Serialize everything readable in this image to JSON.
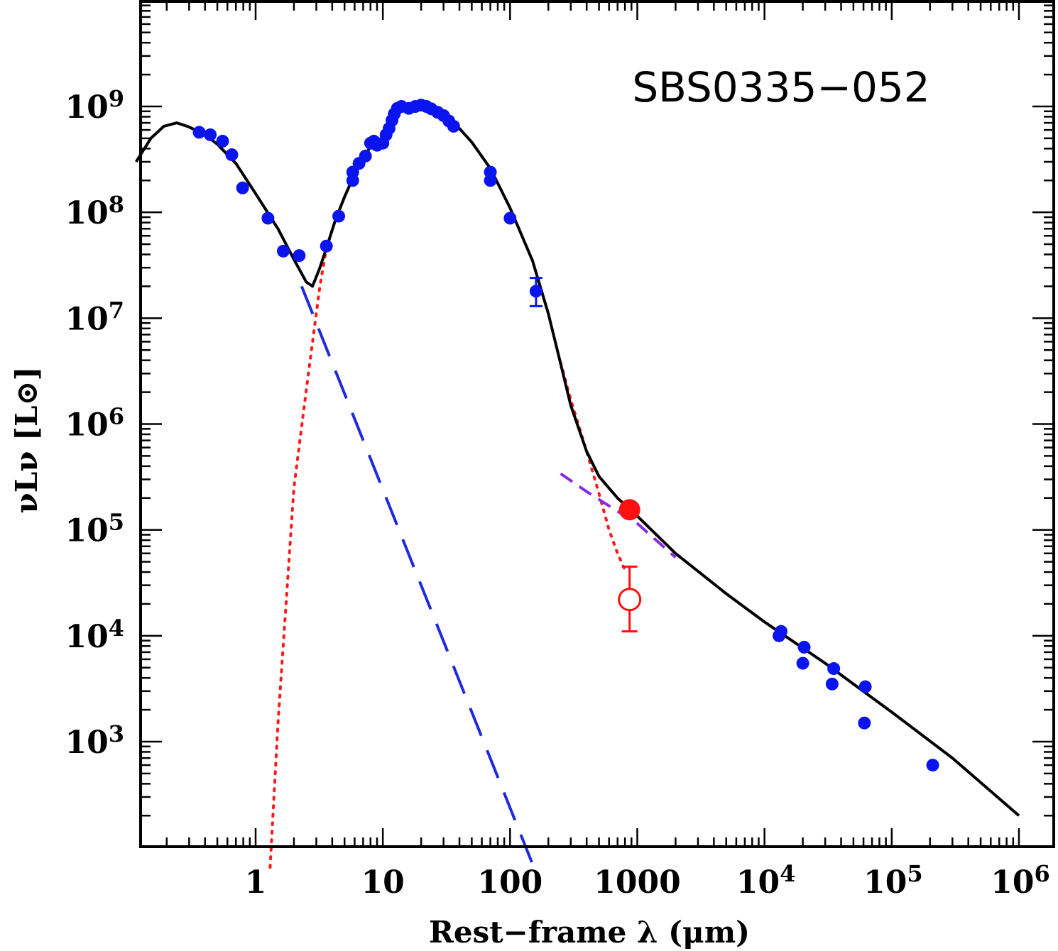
{
  "chart_data": {
    "type": "scatter",
    "annotation": "SBS0335−052",
    "xlabel": "Rest−frame λ (μm)",
    "ylabel": "νLν [L⊙]",
    "xscale": "log",
    "yscale": "log",
    "xlim": [
      0.115,
      3000000
    ],
    "ylim": [
      100,
      1000000000
    ],
    "grid": false,
    "x_ticks": [
      {
        "value": 1,
        "label": "1"
      },
      {
        "value": 10,
        "label": "10"
      },
      {
        "value": 100,
        "label": "100"
      },
      {
        "value": 1000,
        "label": "1000"
      },
      {
        "value": 10000,
        "label": "10",
        "exp": "4"
      },
      {
        "value": 100000,
        "label": "10",
        "exp": "5"
      },
      {
        "value": 1000000,
        "label": "10",
        "exp": "6"
      }
    ],
    "y_ticks": [
      {
        "value": 1000,
        "label": "10",
        "exp": "3"
      },
      {
        "value": 10000,
        "label": "10",
        "exp": "4"
      },
      {
        "value": 100000,
        "label": "10",
        "exp": "5"
      },
      {
        "value": 1000000,
        "label": "10",
        "exp": "6"
      },
      {
        "value": 10000000,
        "label": "10",
        "exp": "7"
      },
      {
        "value": 100000000,
        "label": "10",
        "exp": "8"
      },
      {
        "value": 1000000000,
        "label": "10",
        "exp": "9"
      }
    ],
    "colors": {
      "observed": "#0a14ee",
      "model_total": "#000000",
      "stellar": "#1e2adc",
      "dust": "#ff1a1a",
      "radio": "#8a2be2",
      "submm": "#ff1010"
    },
    "series": [
      {
        "style": "observed",
        "marker": "circle-filled",
        "color": "#0a14ee",
        "points": [
          [
            0.36,
            570000000
          ],
          [
            0.44,
            540000000
          ],
          [
            0.55,
            470000000
          ],
          [
            0.65,
            350000000
          ],
          [
            0.79,
            170000000
          ],
          [
            1.25,
            88000000
          ],
          [
            1.65,
            43000000
          ],
          [
            2.2,
            39000000
          ],
          [
            3.6,
            48000000
          ],
          [
            4.5,
            92000000
          ],
          [
            5.8,
            200000000
          ],
          [
            5.8,
            240000000
          ],
          [
            6.5,
            290000000
          ],
          [
            7.3,
            340000000
          ],
          [
            8.0,
            450000000
          ],
          [
            8.5,
            470000000
          ],
          [
            9.0,
            430000000
          ],
          [
            10.0,
            450000000
          ],
          [
            10.6,
            540000000
          ],
          [
            11.2,
            620000000
          ],
          [
            11.8,
            740000000
          ],
          [
            12.3,
            850000000
          ],
          [
            13.0,
            960000000
          ],
          [
            14.0,
            1000000000
          ],
          [
            16.0,
            960000000
          ],
          [
            18.0,
            1000000000
          ],
          [
            20.0,
            1030000000
          ],
          [
            22.0,
            1000000000
          ],
          [
            24.0,
            950000000
          ],
          [
            27.0,
            880000000
          ],
          [
            30.0,
            820000000
          ],
          [
            33.0,
            730000000
          ],
          [
            36.0,
            650000000
          ],
          [
            70.0,
            240000000
          ],
          [
            70.0,
            200000000
          ],
          [
            100.0,
            88000000
          ],
          [
            160.0,
            18000000
          ],
          [
            13000.0,
            10000
          ],
          [
            13500.0,
            11000
          ],
          [
            20000.0,
            5500
          ],
          [
            20500.0,
            7800
          ],
          [
            34000.0,
            3500
          ],
          [
            35000.0,
            4900
          ],
          [
            61000.0,
            1500
          ],
          [
            62000.0,
            3300
          ],
          [
            210000.0,
            600
          ]
        ]
      },
      {
        "style": "submm-detection",
        "marker": "circle-filled-large",
        "color": "#ff1010",
        "points": [
          [
            870,
            155000
          ]
        ]
      },
      {
        "style": "submm-upper",
        "marker": "circle-open",
        "color": "#ff1010",
        "points": [
          [
            870,
            22000
          ]
        ],
        "err_low": 11000,
        "err_high": 45000
      },
      {
        "style": "model_total",
        "line": "solid",
        "color": "#000000",
        "points": [
          [
            0.115,
            300000000
          ],
          [
            0.15,
            500000000
          ],
          [
            0.19,
            650000000
          ],
          [
            0.24,
            700000000
          ],
          [
            0.3,
            640000000
          ],
          [
            0.4,
            540000000
          ],
          [
            0.5,
            440000000
          ],
          [
            0.7,
            290000000
          ],
          [
            1.0,
            150000000
          ],
          [
            1.5,
            70000000
          ],
          [
            2.0,
            36000000
          ],
          [
            2.5,
            22000000
          ],
          [
            2.8,
            20000000
          ],
          [
            3.2,
            30000000
          ],
          [
            3.6,
            46000000
          ],
          [
            4.2,
            82000000
          ],
          [
            5.0,
            140000000
          ],
          [
            6.0,
            230000000
          ],
          [
            7.0,
            320000000
          ],
          [
            8.0,
            420000000
          ],
          [
            8.5,
            520000000
          ],
          [
            9.0,
            400000000
          ],
          [
            9.5,
            450000000
          ],
          [
            10.5,
            600000000
          ],
          [
            12.0,
            840000000
          ],
          [
            15.0,
            950000000
          ],
          [
            20.0,
            980000000
          ],
          [
            25.0,
            920000000
          ],
          [
            30.0,
            820000000
          ],
          [
            40.0,
            620000000
          ],
          [
            50.0,
            460000000
          ],
          [
            70.0,
            260000000
          ],
          [
            100.0,
            110000000
          ],
          [
            150.0,
            35000000
          ],
          [
            200.0,
            11000000
          ],
          [
            250.0,
            3700000
          ],
          [
            300.0,
            1500000
          ],
          [
            400.0,
            550000
          ],
          [
            500.0,
            320000
          ],
          [
            700.0,
            200000
          ],
          [
            1000.0,
            135000
          ],
          [
            2000.0,
            60000
          ],
          [
            5000.0,
            25000
          ],
          [
            10000.0,
            13500
          ],
          [
            30000.0,
            5500
          ],
          [
            100000.0,
            1900
          ],
          [
            300000.0,
            700
          ],
          [
            1000000.0,
            200
          ]
        ]
      },
      {
        "style": "stellar",
        "line": "long-dash",
        "color": "#1e2adc",
        "points": [
          [
            2.3,
            20000000
          ],
          [
            150,
            70
          ]
        ]
      },
      {
        "style": "dust",
        "line": "dotted",
        "color": "#ff1a1a",
        "points": [
          [
            1.3,
            65
          ],
          [
            1.5,
            1500
          ],
          [
            2.0,
            250000
          ],
          [
            2.6,
            3000000
          ],
          [
            3.2,
            20000000
          ],
          [
            3.6,
            46000000
          ],
          [
            4.2,
            82000000
          ],
          [
            5.0,
            140000000
          ]
        ]
      },
      {
        "style": "dust_tail",
        "line": "dotted",
        "color": "#ff1a1a",
        "points": [
          [
            250,
            3800000
          ],
          [
            300,
            1700000
          ],
          [
            400,
            550000
          ],
          [
            500,
            220000
          ],
          [
            600,
            100000
          ],
          [
            700,
            60000
          ],
          [
            800,
            42000
          ]
        ]
      },
      {
        "style": "radio",
        "line": "dashed",
        "color": "#8a2be2",
        "points": [
          [
            250,
            340000
          ],
          [
            400,
            230000
          ],
          [
            700,
            150000
          ],
          [
            1000,
            115000
          ],
          [
            2000,
            55000
          ]
        ]
      }
    ]
  }
}
